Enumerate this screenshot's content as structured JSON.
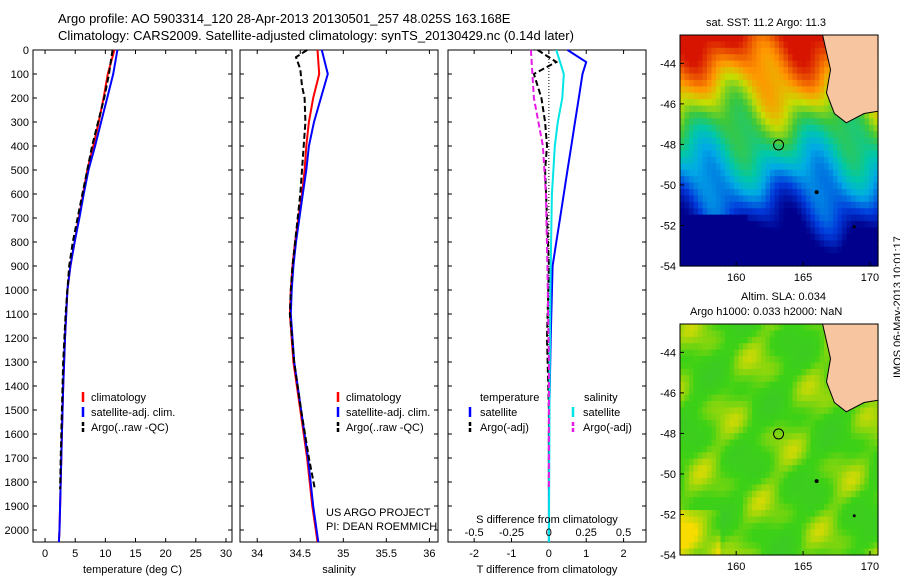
{
  "header": {
    "line1": "Argo profile: AO 5903314_120 28-Apr-2013 20130501_257 48.025S 163.168E",
    "line2": "Climatology: CARS2009. Satellite-adjusted climatology: synTS_20130429.nc (0.14d later)"
  },
  "stamp": "IMOS 06-May-2013 10:01:17",
  "colors": {
    "climatology": "#ff0000",
    "satellite": "#0000ff",
    "argo": "#000000",
    "satellite_s": "#00e5e5",
    "argo_s": "#e619e6"
  },
  "chart_data": [
    {
      "type": "line",
      "name": "temperature",
      "xlabel": "temperature (deg C)",
      "ylabel": "",
      "xlim": [
        -2,
        31
      ],
      "ylim": [
        2050,
        0
      ],
      "xticks": [
        0,
        5,
        10,
        15,
        20,
        25,
        30
      ],
      "yticks": [
        0,
        100,
        200,
        300,
        400,
        500,
        600,
        700,
        800,
        900,
        1000,
        1100,
        1200,
        1300,
        1400,
        1500,
        1600,
        1700,
        1800,
        1900,
        2000
      ],
      "legend": [
        "climatology",
        "satellite-adj. clim.",
        "Argo(..raw -QC)"
      ],
      "series": [
        {
          "name": "climatology",
          "x": [
            11.5,
            10.4,
            9.7,
            8.9,
            8.0,
            7.0,
            6.3,
            5.6,
            4.9,
            4.2,
            3.7,
            3.3,
            3.0,
            2.8,
            2.6,
            2.4,
            2.3
          ],
          "y": [
            0,
            100,
            200,
            300,
            400,
            500,
            600,
            700,
            800,
            900,
            1000,
            1200,
            1400,
            1600,
            1800,
            2000,
            2050
          ]
        },
        {
          "name": "satellite-adj. clim.",
          "x": [
            12.0,
            11.3,
            10.3,
            9.3,
            8.3,
            7.2,
            6.4,
            5.7,
            4.9,
            4.2,
            3.7,
            3.3,
            3.0,
            2.8,
            2.6,
            2.4,
            2.3
          ],
          "y": [
            0,
            100,
            200,
            300,
            400,
            500,
            600,
            700,
            800,
            900,
            1000,
            1200,
            1400,
            1600,
            1800,
            2000,
            2050
          ]
        },
        {
          "name": "Argo(..raw -QC)",
          "x": [
            11.2,
            11.0,
            10.6,
            9.8,
            8.8,
            7.8,
            7.0,
            6.2,
            5.4,
            4.6,
            4.0,
            3.4,
            3.0,
            2.8,
            2.6,
            2.5
          ],
          "y": [
            0,
            30,
            100,
            200,
            300,
            400,
            500,
            600,
            700,
            800,
            900,
            1100,
            1300,
            1500,
            1700,
            1830
          ]
        }
      ]
    },
    {
      "type": "line",
      "name": "salinity",
      "xlabel": "salinity",
      "ylabel": "",
      "xlim": [
        33.8,
        36.1
      ],
      "ylim": [
        2050,
        0
      ],
      "xticks": [
        34,
        34.5,
        35,
        35.5,
        36
      ],
      "legend": [
        "climatology",
        "satellite-adj. clim.",
        "Argo(..raw -QC)"
      ],
      "series": [
        {
          "name": "climatology",
          "x": [
            34.7,
            34.72,
            34.65,
            34.6,
            34.57,
            34.55,
            34.52,
            34.48,
            34.44,
            34.41,
            34.39,
            34.38,
            34.42,
            34.5,
            34.58,
            34.64,
            34.68,
            34.7
          ],
          "y": [
            0,
            100,
            200,
            300,
            400,
            500,
            600,
            700,
            800,
            900,
            1000,
            1100,
            1300,
            1500,
            1700,
            1900,
            2000,
            2050
          ]
        },
        {
          "name": "satellite-adj. clim.",
          "x": [
            34.75,
            34.82,
            34.74,
            34.66,
            34.6,
            34.57,
            34.53,
            34.49,
            34.45,
            34.42,
            34.4,
            34.39,
            34.43,
            34.51,
            34.59,
            34.65,
            34.69,
            34.71
          ],
          "y": [
            0,
            100,
            200,
            300,
            400,
            500,
            600,
            700,
            800,
            900,
            1000,
            1100,
            1300,
            1500,
            1700,
            1900,
            2000,
            2050
          ]
        },
        {
          "name": "Argo(..raw -QC)",
          "x": [
            34.58,
            34.45,
            34.5,
            34.52,
            34.55,
            34.56,
            34.54,
            34.52,
            34.5,
            34.47,
            34.44,
            34.41,
            34.39,
            34.38,
            34.43,
            34.51,
            34.6,
            34.67
          ],
          "y": [
            0,
            30,
            80,
            150,
            200,
            300,
            400,
            500,
            600,
            700,
            800,
            900,
            1000,
            1100,
            1300,
            1500,
            1700,
            1830
          ]
        }
      ]
    },
    {
      "type": "line",
      "name": "difference",
      "xlabel": "T difference from climatology",
      "x2label": "S difference from climatology",
      "xlim": [
        -2.7,
        2.6
      ],
      "ylim": [
        2050,
        0
      ],
      "xticks": [
        -2,
        -1,
        0,
        1,
        2
      ],
      "x2ticks": [
        "-0.5",
        "-0.25",
        "0",
        "0.25",
        "0.5"
      ],
      "legend": {
        "temperature_title": "temperature",
        "salinity_title": "salinity",
        "temperature": [
          "satellite",
          "Argo(-adj)"
        ],
        "salinity": [
          "satellite",
          "Argo(-adj)"
        ]
      },
      "series": [
        {
          "name": "T satellite",
          "x": [
            0.5,
            1.0,
            0.9,
            0.8,
            0.7,
            0.6,
            0.5,
            0.4,
            0.3,
            0.2,
            0.1,
            0.05,
            0,
            0
          ],
          "y": [
            0,
            50,
            100,
            200,
            300,
            400,
            500,
            600,
            700,
            800,
            900,
            1200,
            1600,
            2050
          ]
        },
        {
          "name": "T Argo(-adj)",
          "x": [
            -0.3,
            0.2,
            -0.4,
            -0.2,
            -0.1,
            -0.05,
            -0.1,
            -0.05,
            0,
            -0.05,
            0,
            0
          ],
          "y": [
            0,
            50,
            100,
            200,
            300,
            400,
            500,
            700,
            900,
            1200,
            1500,
            1830
          ]
        },
        {
          "name": "S satellite",
          "x": [
            0.05,
            0.1,
            0.09,
            0.06,
            0.04,
            0.03,
            0.02,
            0.015,
            0.01,
            0.005,
            0
          ],
          "y": [
            0,
            100,
            200,
            300,
            400,
            500,
            600,
            800,
            1000,
            1400,
            2050
          ]
        },
        {
          "name": "S Argo(-adj)",
          "x": [
            -0.12,
            -0.11,
            -0.1,
            -0.07,
            -0.04,
            -0.03,
            -0.02,
            -0.01,
            0,
            0
          ],
          "y": [
            0,
            100,
            200,
            300,
            400,
            500,
            600,
            900,
            1300,
            1830
          ]
        }
      ]
    },
    {
      "type": "heatmap",
      "name": "sst-map",
      "title": "sat. SST: 11.2 Argo: 11.3",
      "xticks": [
        160,
        165,
        170
      ],
      "yticks": [
        -44,
        -46,
        -48,
        -50,
        -52,
        -54
      ],
      "xlim": [
        155.8,
        170.6
      ],
      "ylim": [
        -54,
        -42.6
      ],
      "marker": {
        "lon": 163.168,
        "lat": -48.025
      }
    },
    {
      "type": "heatmap",
      "name": "sla-map",
      "title_line1": "Altim. SLA: 0.034",
      "title_line2": "Argo h1000: 0.033 h2000: NaN",
      "xticks": [
        160,
        165,
        170
      ],
      "yticks": [
        -44,
        -46,
        -48,
        -50,
        -52,
        -54
      ],
      "xlim": [
        155.8,
        170.6
      ],
      "ylim": [
        -54,
        -42.6
      ],
      "marker": {
        "lon": 163.168,
        "lat": -48.025
      }
    }
  ],
  "annotations": {
    "project": "US ARGO PROJECT",
    "pi": "PI: DEAN ROEMMICH"
  }
}
